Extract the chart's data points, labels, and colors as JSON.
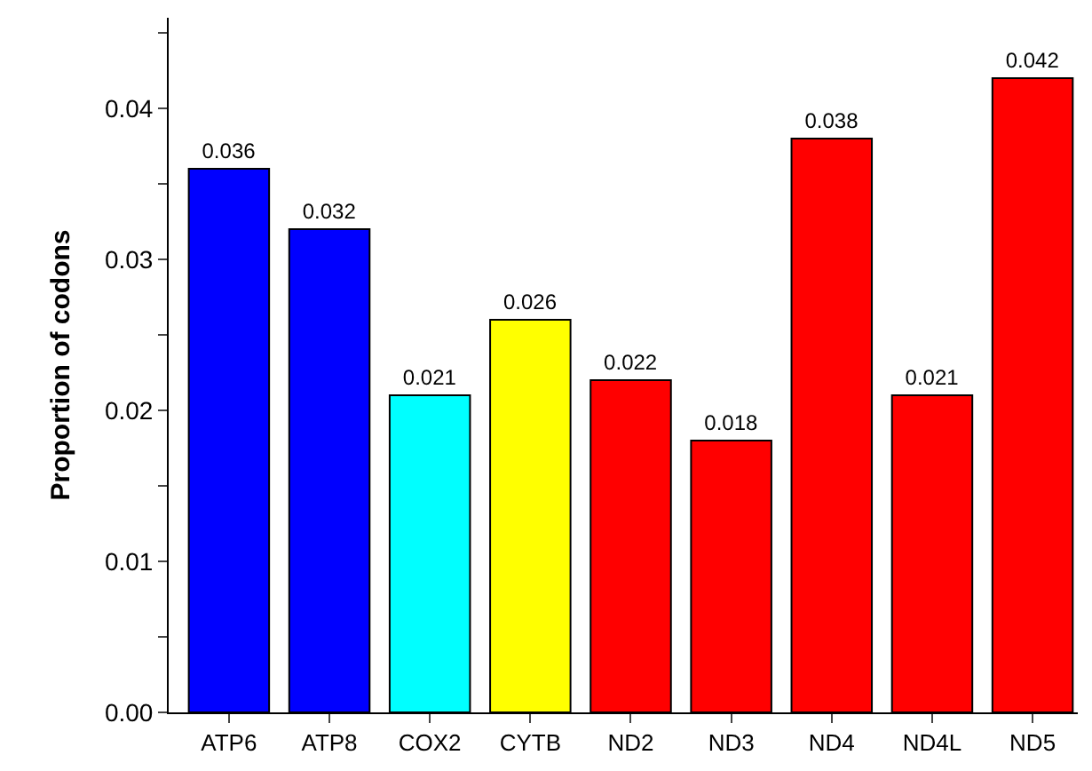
{
  "chart_data": {
    "type": "bar",
    "ylabel": "Proportion of codons",
    "categories": [
      "ATP6",
      "ATP8",
      "COX2",
      "CYTB",
      "ND2",
      "ND3",
      "ND4",
      "ND4L",
      "ND5"
    ],
    "values": [
      0.036,
      0.032,
      0.021,
      0.026,
      0.022,
      0.018,
      0.038,
      0.021,
      0.042
    ],
    "colors": [
      "#0000ff",
      "#0000ff",
      "#00ffff",
      "#ffff00",
      "#ff0000",
      "#ff0000",
      "#ff0000",
      "#ff0000",
      "#ff0000"
    ],
    "ylim": [
      0,
      0.046
    ],
    "yticks": [
      {
        "value": 0,
        "label": "0.00"
      },
      {
        "value": 0.005,
        "label": null
      },
      0.01,
      {
        "value": 0.015,
        "label": null
      },
      0.02,
      {
        "value": 0.025,
        "label": null
      },
      0.03,
      {
        "value": 0.035,
        "label": null
      },
      0.04,
      {
        "value": 0.045,
        "label": null
      }
    ],
    "data_labels": true
  }
}
